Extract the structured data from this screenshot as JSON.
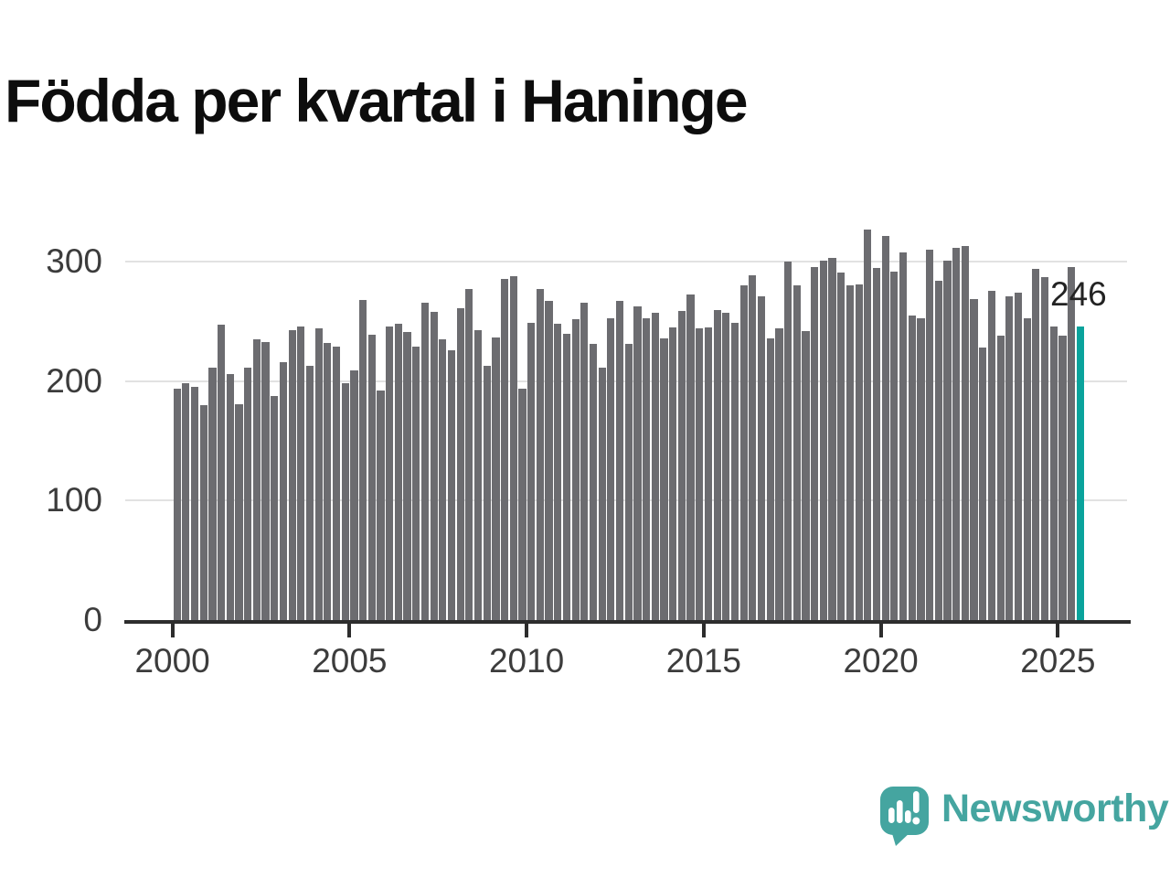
{
  "title": "Födda per kvartal i Haninge",
  "chart_data": {
    "type": "bar",
    "title": "Födda per kvartal i Haninge",
    "x_first": "2000 Q1",
    "x_last": "2025 Q3",
    "frequency": "quarterly",
    "values": [
      194,
      198,
      195,
      180,
      211,
      247,
      206,
      181,
      211,
      235,
      233,
      188,
      216,
      243,
      246,
      213,
      244,
      232,
      229,
      198,
      209,
      268,
      239,
      192,
      246,
      248,
      241,
      229,
      266,
      258,
      235,
      226,
      261,
      277,
      243,
      213,
      237,
      286,
      288,
      194,
      249,
      277,
      267,
      248,
      240,
      252,
      266,
      231,
      211,
      253,
      267,
      231,
      263,
      253,
      257,
      236,
      245,
      259,
      273,
      244,
      245,
      260,
      257,
      249,
      280,
      289,
      271,
      236,
      244,
      300,
      280,
      242,
      296,
      301,
      303,
      291,
      280,
      281,
      327,
      295,
      322,
      292,
      308,
      255,
      253,
      310,
      284,
      301,
      312,
      313,
      269,
      228,
      276,
      238,
      271,
      274,
      253,
      294,
      287,
      246,
      238,
      296,
      246
    ],
    "yticks": [
      0,
      100,
      200,
      300
    ],
    "xtick_year_labels": [
      "2000",
      "2005",
      "2010",
      "2015",
      "2020",
      "2025"
    ],
    "ylim": [
      0,
      340
    ],
    "grid": "horizontal",
    "legend": "none",
    "last_bar": {
      "label": "246",
      "value": 246,
      "highlighted": true
    }
  },
  "colors": {
    "bar": "#6c6c70",
    "highlight": "#0aa39c",
    "grid": "#e2e2e2",
    "axis": "#2d2d2d",
    "logo": "#45a5a0"
  },
  "branding": {
    "logo_text": "Newsworthy"
  }
}
